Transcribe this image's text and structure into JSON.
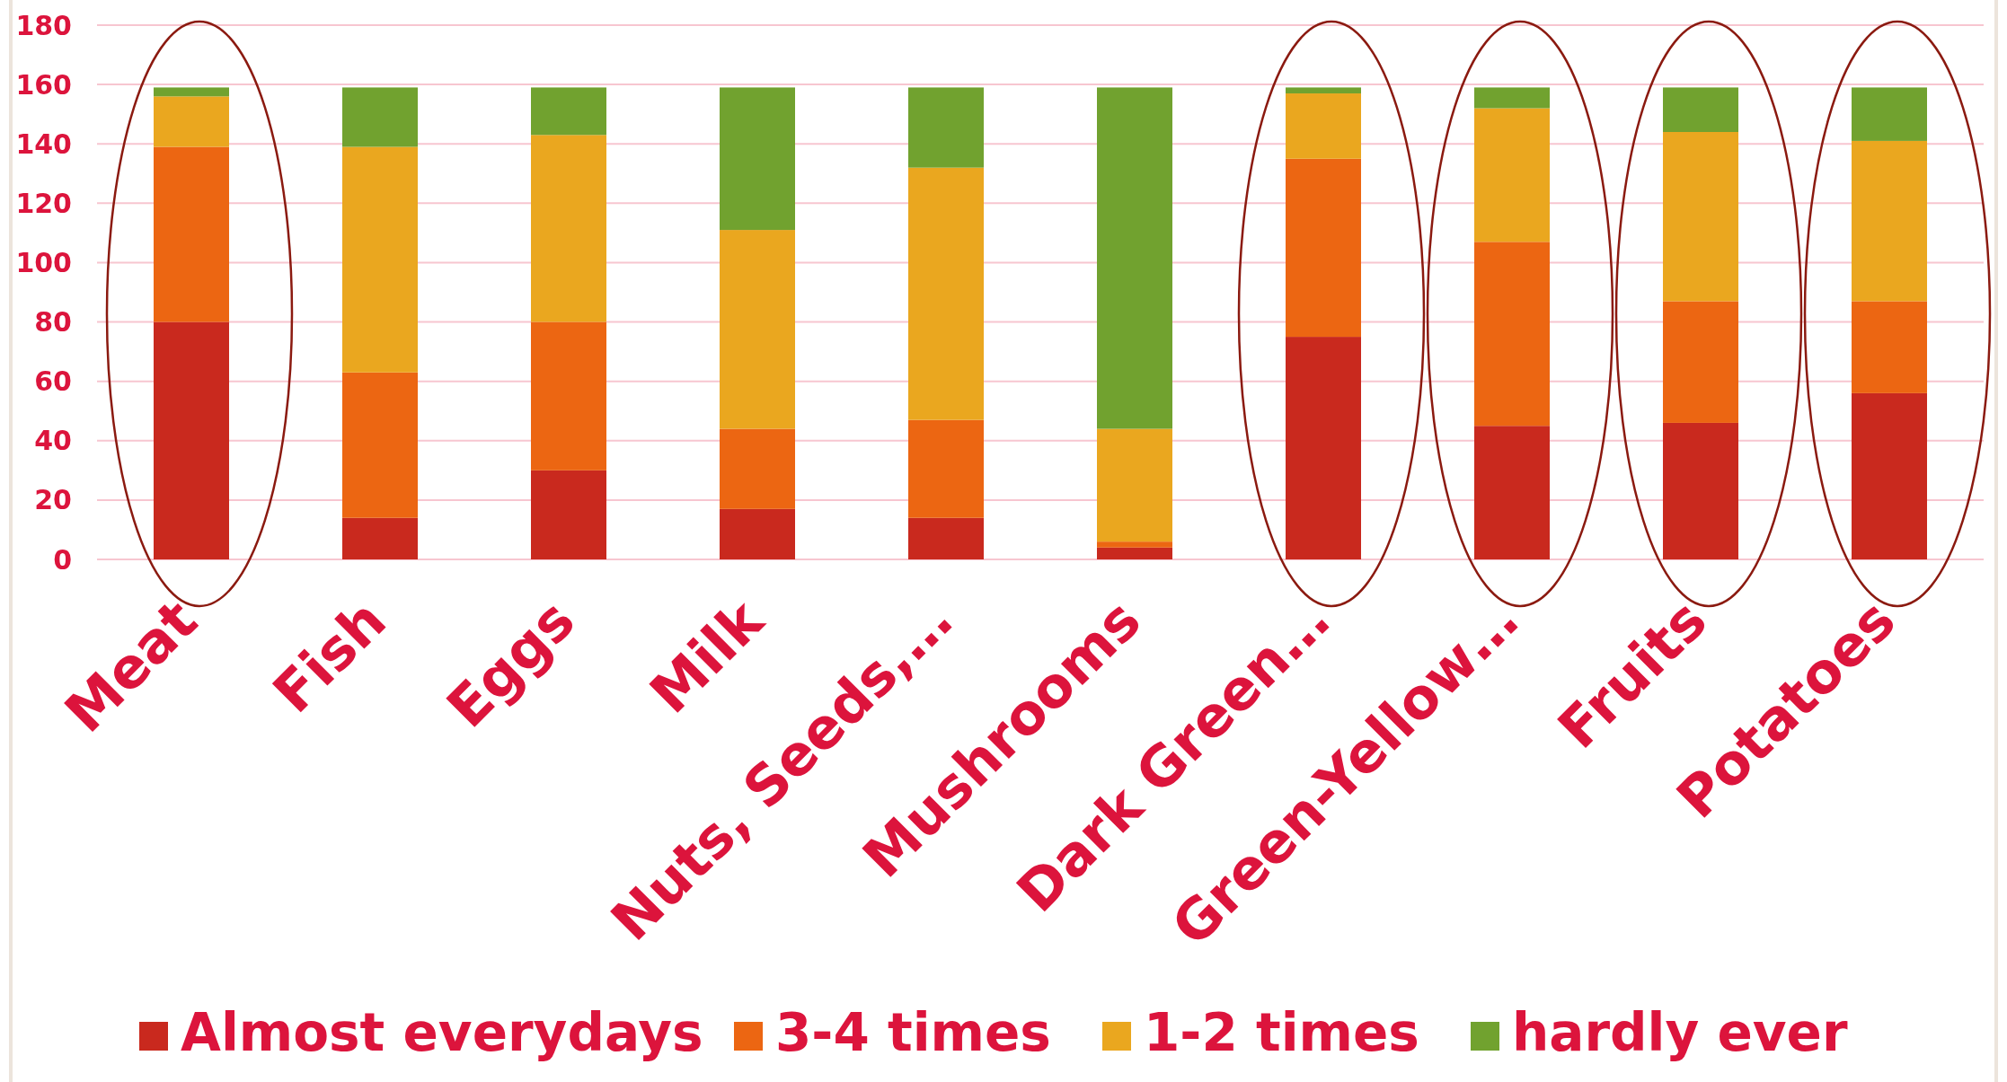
{
  "chart_data": {
    "type": "bar",
    "stacked": true,
    "categories": [
      "Meat",
      "Fish",
      "Eggs",
      "Milk",
      "Nuts, Seeds,…",
      "Mushrooms",
      "Dark Green…",
      "Green-Yellow…",
      "Fruits",
      "Potatoes"
    ],
    "series": [
      {
        "name": "Almost everydays",
        "color": "#c9291e",
        "values": [
          80,
          14,
          30,
          17,
          14,
          4,
          75,
          45,
          46,
          56
        ]
      },
      {
        "name": "3-4 times",
        "color": "#ec6612",
        "values": [
          59,
          49,
          50,
          27,
          33,
          2,
          60,
          62,
          41,
          31
        ]
      },
      {
        "name": "1-2 times",
        "color": "#eaa71f",
        "values": [
          17,
          76,
          63,
          67,
          85,
          38,
          22,
          45,
          57,
          54
        ]
      },
      {
        "name": "hardly ever",
        "color": "#71a22f",
        "values": [
          3,
          20,
          16,
          48,
          27,
          115,
          2,
          7,
          15,
          18
        ]
      }
    ],
    "ylim": [
      0,
      180
    ],
    "yticks": [
      0,
      20,
      40,
      60,
      80,
      100,
      120,
      140,
      160,
      180
    ],
    "grid": "y",
    "legend": "bottom"
  }
}
